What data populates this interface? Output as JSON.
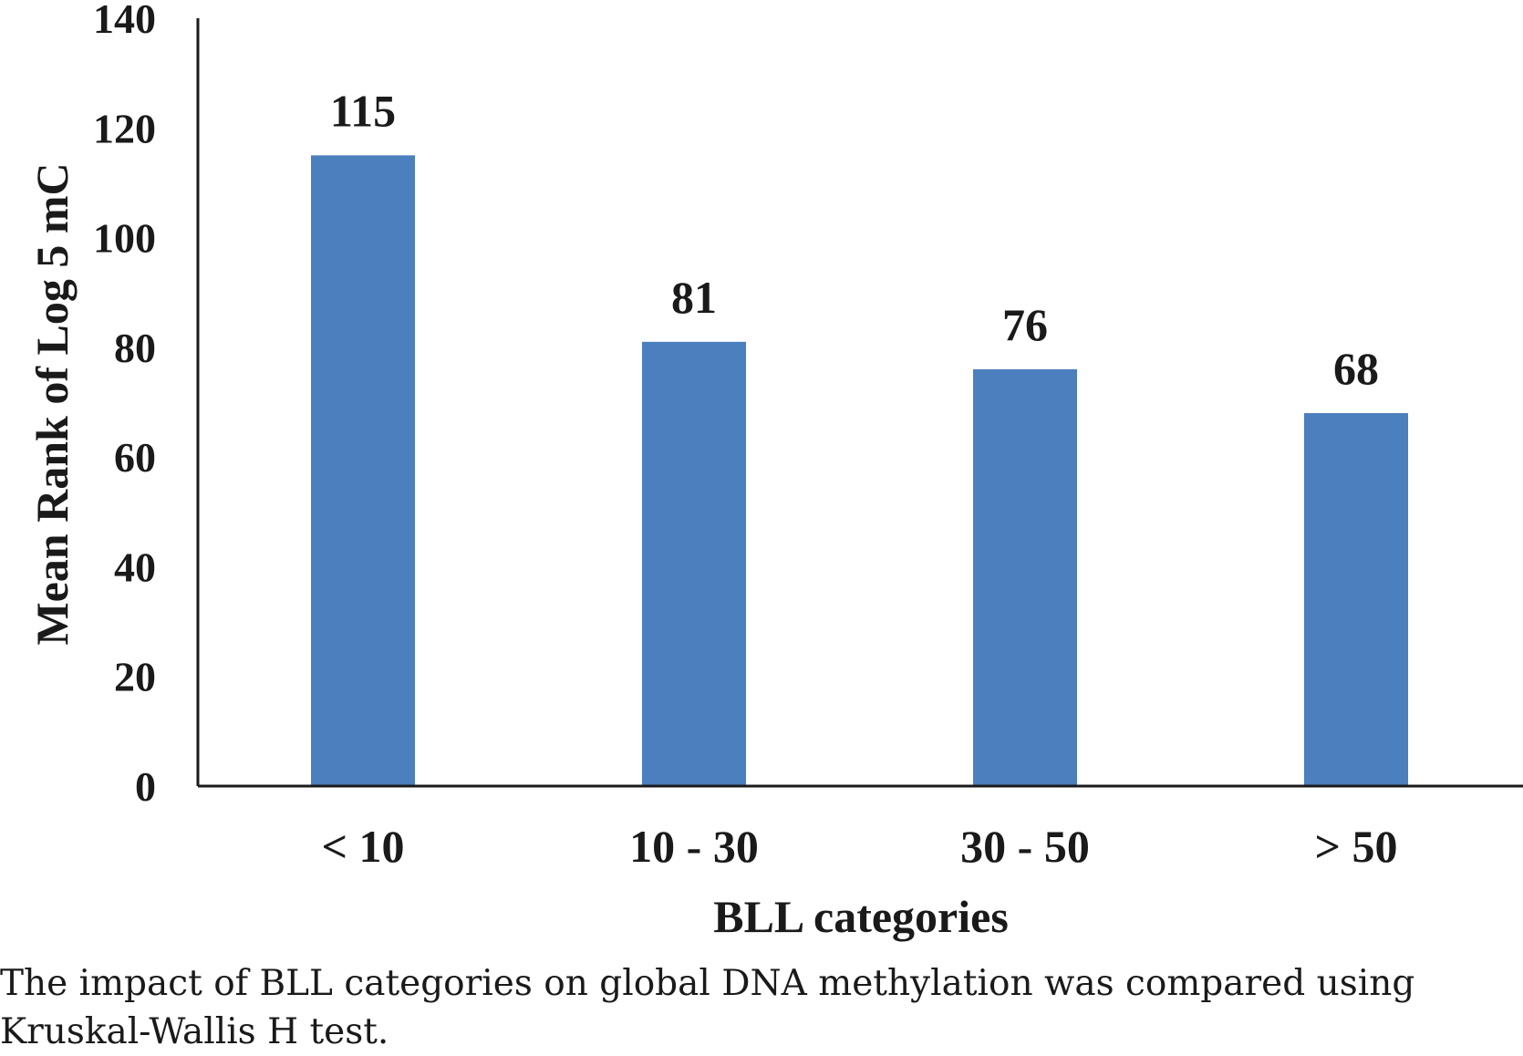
{
  "chart_data": {
    "type": "bar",
    "categories": [
      "< 10",
      "10 - 30",
      "30 - 50",
      "> 50"
    ],
    "values": [
      115,
      81,
      76,
      68
    ],
    "data_labels": [
      "115",
      "81",
      "76",
      "68"
    ],
    "xlabel": "BLL categories",
    "ylabel": "Mean Rank of Log 5 mC",
    "ylim": [
      0,
      140
    ],
    "yticks": [
      0,
      20,
      40,
      60,
      80,
      100,
      120,
      140
    ],
    "bar_color": "#4b7fbd",
    "grid": false,
    "legend": "none"
  },
  "caption": "The impact of BLL categories on global DNA methylation was compared using Kruskal-Wallis H test."
}
